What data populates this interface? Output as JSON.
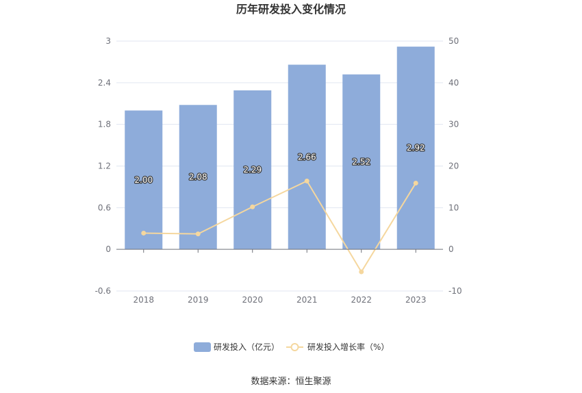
{
  "chart_data": {
    "type": "bar",
    "title": "历年研发投入变化情况",
    "categories": [
      "2018",
      "2019",
      "2020",
      "2021",
      "2022",
      "2023"
    ],
    "series": [
      {
        "name": "研发投入（亿元）",
        "type": "bar",
        "axis": "left",
        "color": "#8eacda",
        "values": [
          2.0,
          2.08,
          2.29,
          2.66,
          2.52,
          2.92
        ],
        "labels": [
          "2.00",
          "2.08",
          "2.29",
          "2.66",
          "2.52",
          "2.92"
        ]
      },
      {
        "name": "研发投入增长率（%）",
        "type": "line",
        "axis": "right",
        "color": "#f5d79e",
        "values": [
          3.9,
          3.7,
          10.2,
          16.4,
          -5.4,
          15.9
        ]
      }
    ],
    "y_left": {
      "min": -0.6,
      "max": 3,
      "ticks": [
        "-0.6",
        "0",
        "0.6",
        "1.2",
        "1.8",
        "2.4",
        "3"
      ]
    },
    "y_right": {
      "min": -10,
      "max": 50,
      "ticks": [
        "-10",
        "0",
        "10",
        "20",
        "30",
        "40",
        "50"
      ]
    },
    "grid": true,
    "legend_position": "bottom"
  },
  "source_text": "数据来源：恒生聚源"
}
